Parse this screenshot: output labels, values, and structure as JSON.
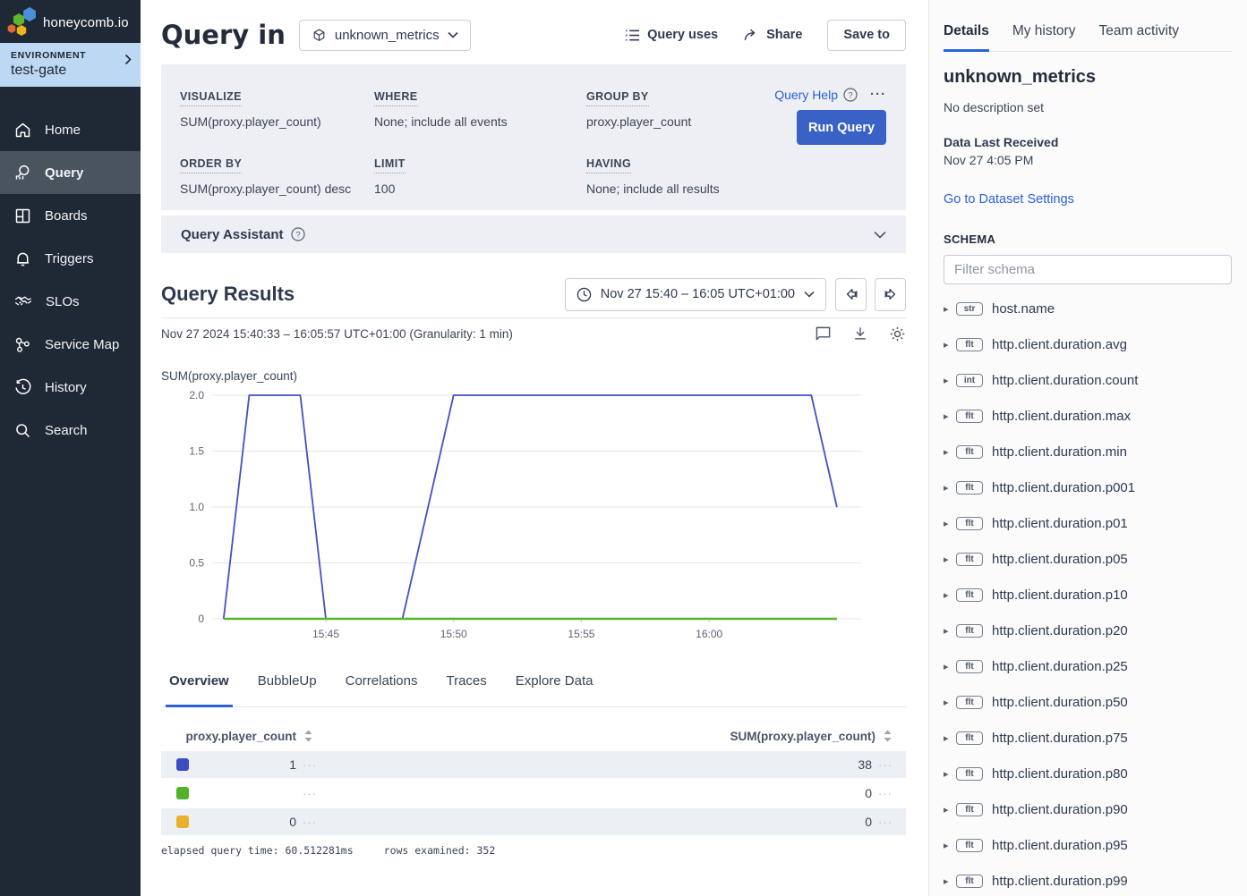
{
  "sidebar": {
    "logo_text": "honeycomb.io",
    "environment": {
      "label": "ENVIRONMENT",
      "name": "test-gate"
    },
    "items": [
      {
        "label": "Home"
      },
      {
        "label": "Query",
        "active": true
      },
      {
        "label": "Boards"
      },
      {
        "label": "Triggers"
      },
      {
        "label": "SLOs"
      },
      {
        "label": "Service Map"
      },
      {
        "label": "History"
      },
      {
        "label": "Search"
      }
    ]
  },
  "header": {
    "title": "Query in",
    "dataset": "unknown_metrics",
    "query_uses": "Query uses",
    "share": "Share",
    "save_to": "Save to"
  },
  "query_builder": {
    "visualize": {
      "label": "VISUALIZE",
      "value": "SUM(proxy.player_count)"
    },
    "where": {
      "label": "WHERE",
      "value": "None; include all events"
    },
    "group_by": {
      "label": "GROUP BY",
      "value": "proxy.player_count"
    },
    "order_by": {
      "label": "ORDER BY",
      "value": "SUM(proxy.player_count) desc"
    },
    "limit": {
      "label": "LIMIT",
      "value": "100"
    },
    "having": {
      "label": "HAVING",
      "value": "None; include all results"
    },
    "query_help": "Query Help",
    "run_query": "Run Query"
  },
  "query_assistant": {
    "title": "Query Assistant"
  },
  "results": {
    "title": "Query Results",
    "time_range": "Nov 27 15:40 – 16:05 UTC+01:00",
    "subtitle": "Nov 27 2024 15:40:33 – 16:05:57 UTC+01:00 (Granularity: 1 min)"
  },
  "chart_data": {
    "type": "line",
    "title": "SUM(proxy.player_count)",
    "xlabel": "",
    "ylabel": "SUM(proxy.player_count)",
    "x_range": [
      "15:40:33",
      "16:05:57"
    ],
    "x_ticks": [
      "15:45",
      "15:50",
      "15:55",
      "16:00"
    ],
    "y_ticks": [
      0,
      0.5,
      1.0,
      1.5,
      2.0
    ],
    "ylim": [
      0,
      2
    ],
    "grid": "horizontal",
    "granularity": "1 min",
    "legend_position": "table-below",
    "series": [
      {
        "name": "proxy.player_count = 1",
        "color": "#4350c5",
        "width": 1.8,
        "z": 2,
        "points": [
          [
            "15:41",
            0
          ],
          [
            "15:42",
            2
          ],
          [
            "15:44",
            2
          ],
          [
            "15:45",
            0
          ],
          [
            "15:48",
            0
          ],
          [
            "15:49",
            1
          ],
          [
            "15:50",
            2
          ],
          [
            "16:04",
            2
          ],
          [
            "16:05",
            1
          ]
        ]
      },
      {
        "name": "proxy.player_count = (empty)",
        "color": "#57b32e",
        "width": 2.4,
        "z": 3,
        "points": [
          [
            "15:41",
            0
          ],
          [
            "16:05",
            0
          ]
        ]
      },
      {
        "name": "proxy.player_count = 0",
        "color": "#e9b12d",
        "width": 2,
        "z": 1,
        "points": [
          [
            "15:41",
            0
          ],
          [
            "16:05",
            0
          ]
        ]
      }
    ]
  },
  "tabs": [
    {
      "label": "Overview",
      "active": true
    },
    {
      "label": "BubbleUp"
    },
    {
      "label": "Correlations"
    },
    {
      "label": "Traces"
    },
    {
      "label": "Explore Data"
    }
  ],
  "table": {
    "columns": [
      "proxy.player_count",
      "SUM(proxy.player_count)"
    ],
    "rows": [
      {
        "color": "#3d4cc0",
        "group": "1",
        "sum": "38"
      },
      {
        "color": "#52b32b",
        "group": "",
        "sum": "0"
      },
      {
        "color": "#e9b02e",
        "group": "0",
        "sum": "0"
      }
    ],
    "row_menu": "···"
  },
  "query_footer": {
    "elapsed": "elapsed query time: 60.512281ms",
    "rows_examined": "rows examined: 352"
  },
  "details_panel": {
    "tabs": [
      {
        "label": "Details",
        "active": true
      },
      {
        "label": "My history"
      },
      {
        "label": "Team activity"
      }
    ],
    "dataset_name": "unknown_metrics",
    "description": "No description set",
    "last_received_label": "Data Last Received",
    "last_received": "Nov 27 4:05 PM",
    "settings_link": "Go to Dataset Settings",
    "schema_label": "SCHEMA",
    "filter_placeholder": "Filter schema",
    "schema": [
      {
        "type": "str",
        "name": "host.name"
      },
      {
        "type": "flt",
        "name": "http.client.duration.avg"
      },
      {
        "type": "int",
        "name": "http.client.duration.count"
      },
      {
        "type": "flt",
        "name": "http.client.duration.max"
      },
      {
        "type": "flt",
        "name": "http.client.duration.min"
      },
      {
        "type": "flt",
        "name": "http.client.duration.p001"
      },
      {
        "type": "flt",
        "name": "http.client.duration.p01"
      },
      {
        "type": "flt",
        "name": "http.client.duration.p05"
      },
      {
        "type": "flt",
        "name": "http.client.duration.p10"
      },
      {
        "type": "flt",
        "name": "http.client.duration.p20"
      },
      {
        "type": "flt",
        "name": "http.client.duration.p25"
      },
      {
        "type": "flt",
        "name": "http.client.duration.p50"
      },
      {
        "type": "flt",
        "name": "http.client.duration.p75"
      },
      {
        "type": "flt",
        "name": "http.client.duration.p80"
      },
      {
        "type": "flt",
        "name": "http.client.duration.p90"
      },
      {
        "type": "flt",
        "name": "http.client.duration.p95"
      },
      {
        "type": "flt",
        "name": "http.client.duration.p99"
      }
    ]
  },
  "colors": {
    "accent_blue": "#2b5fd9",
    "run_button": "#3a62c6",
    "sidebar_bg": "#1f2935",
    "sidebar_active": "#4a545f",
    "env_banner": "#bdd8f2",
    "panel_gray": "#edeff4",
    "row_shade": "#eceff4",
    "series_blue": "#4350c5",
    "series_green": "#57b32e",
    "series_yellow": "#e9b12d"
  }
}
